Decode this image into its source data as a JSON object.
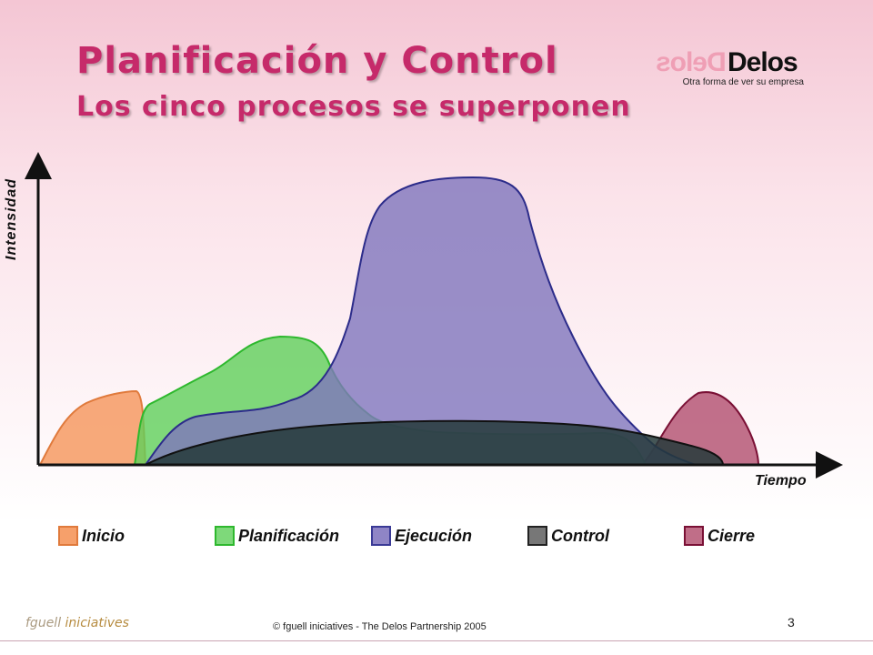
{
  "slide": {
    "title": "Planificación y Control",
    "subtitle": "Los cinco procesos se superponen"
  },
  "logo": {
    "mirror_text": "Delos",
    "main_text": "Delos",
    "tagline": "Otra forma de ver su empresa"
  },
  "diagram": {
    "y_label": "Intensidad",
    "x_label": "Tiempo"
  },
  "legend": [
    {
      "label": "Inicio",
      "color": "#f6a06b",
      "border": "#e07a3c"
    },
    {
      "label": "Planificación",
      "color": "#7ed97a",
      "border": "#2eb82e"
    },
    {
      "label": "Ejecución",
      "color": "#8f85c6",
      "border": "#3a3a96"
    },
    {
      "label": "Control",
      "color": "#777777",
      "border": "#222222"
    },
    {
      "label": "Cierre",
      "color": "#c06e88",
      "border": "#7a1035"
    }
  ],
  "footer": {
    "brand_a": "fguell",
    "brand_b": "iniciatives",
    "copyright": "© fguell iniciatives - The Delos Partnership 2005",
    "page": "3"
  }
}
